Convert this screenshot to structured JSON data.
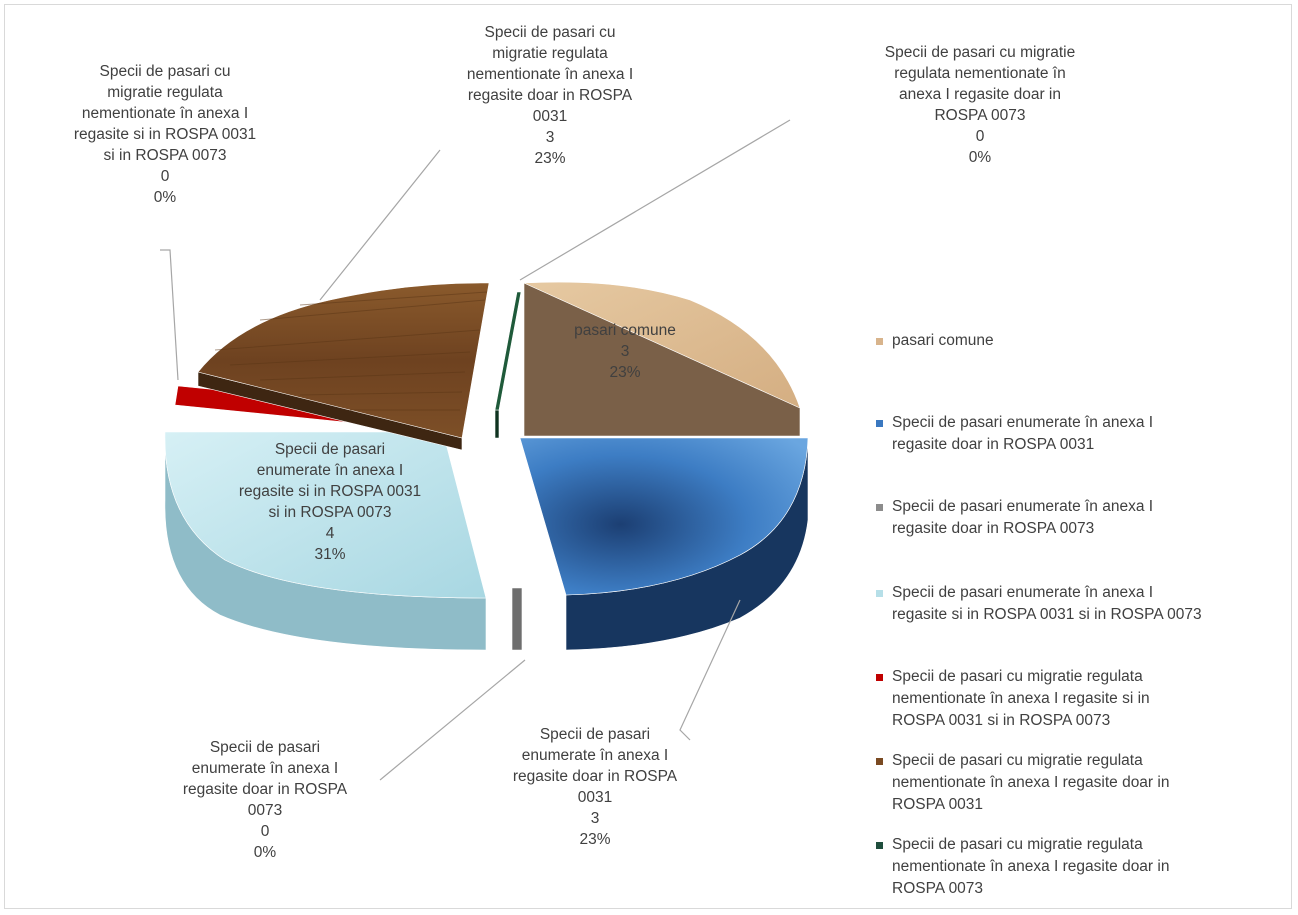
{
  "chart_data": {
    "type": "pie",
    "title": "",
    "slices": [
      {
        "label": "pasari comune",
        "value": 3,
        "percent": "23%",
        "color": "#d8b48c"
      },
      {
        "label": "Specii de pasari enumerate în anexa I regasite doar in ROSPA 0031",
        "value": 3,
        "percent": "23%",
        "color": "#3a78c0"
      },
      {
        "label": "Specii de pasari enumerate în anexa I regasite doar in ROSPA 0073",
        "value": 0,
        "percent": "0%",
        "color": "#8c8c8c"
      },
      {
        "label": "Specii de pasari enumerate în anexa I regasite si in ROSPA 0031 si in ROSPA 0073",
        "value": 4,
        "percent": "31%",
        "color": "#b6dfe8"
      },
      {
        "label": "Specii de pasari cu migratie regulata nementionate în anexa I regasite si in ROSPA 0031 si in ROSPA 0073",
        "value": 0,
        "percent": "0%",
        "color": "#c00000"
      },
      {
        "label": "Specii de pasari cu migratie regulata nementionate în anexa I regasite doar in ROSPA 0031",
        "value": 3,
        "percent": "23%",
        "color": "#7a4a22"
      },
      {
        "label": "Specii de pasari cu migratie regulata nementionate în anexa I regasite doar  in ROSPA 0073",
        "value": 0,
        "percent": "0%",
        "color": "#1f4e3d"
      }
    ],
    "legend_position": "right"
  },
  "callouts": [
    {
      "lines": [
        "pasari comune",
        "3",
        "23%"
      ]
    },
    {
      "lines": [
        "Specii de pasari",
        "enumerate în anexa I",
        "regasite doar in ROSPA",
        "0031",
        "3",
        "23%"
      ]
    },
    {
      "lines": [
        "Specii de pasari",
        "enumerate în anexa I",
        "regasite doar in ROSPA",
        "0073",
        "0",
        "0%"
      ]
    },
    {
      "lines": [
        "Specii de pasari",
        "enumerate în anexa I",
        "regasite si in ROSPA 0031",
        "si in ROSPA 0073",
        "4",
        "31%"
      ]
    },
    {
      "lines": [
        "Specii de pasari cu",
        "migratie regulata",
        "nementionate în anexa I",
        "regasite si in ROSPA 0031",
        "si in ROSPA 0073",
        "0",
        "0%"
      ]
    },
    {
      "lines": [
        "Specii de pasari cu",
        "migratie regulata",
        "nementionate în anexa I",
        "regasite doar in ROSPA",
        "0031",
        "3",
        "23%"
      ]
    },
    {
      "lines": [
        "Specii de pasari cu migratie",
        "regulata  nementionate în",
        "anexa I regasite doar  in",
        "ROSPA 0073",
        "0",
        "0%"
      ]
    }
  ],
  "legend": [
    {
      "lines": [
        "pasari comune"
      ]
    },
    {
      "lines": [
        "Specii de pasari enumerate în anexa I",
        "regasite doar in ROSPA 0031"
      ]
    },
    {
      "lines": [
        "Specii de pasari enumerate în anexa I",
        "regasite doar in ROSPA 0073"
      ]
    },
    {
      "lines": [
        "Specii de pasari enumerate în anexa I",
        "regasite si in ROSPA 0031 si in ROSPA 0073"
      ]
    },
    {
      "lines": [
        "Specii de pasari cu migratie regulata",
        "nementionate în anexa I regasite si in",
        "ROSPA 0031 si in ROSPA 0073"
      ]
    },
    {
      "lines": [
        "Specii de pasari cu migratie regulata",
        "nementionate în anexa I regasite doar in",
        "ROSPA 0031"
      ]
    },
    {
      "lines": [
        "Specii de pasari cu migratie regulata",
        "nementionate în anexa I regasite doar  in",
        "ROSPA 0073"
      ]
    }
  ]
}
